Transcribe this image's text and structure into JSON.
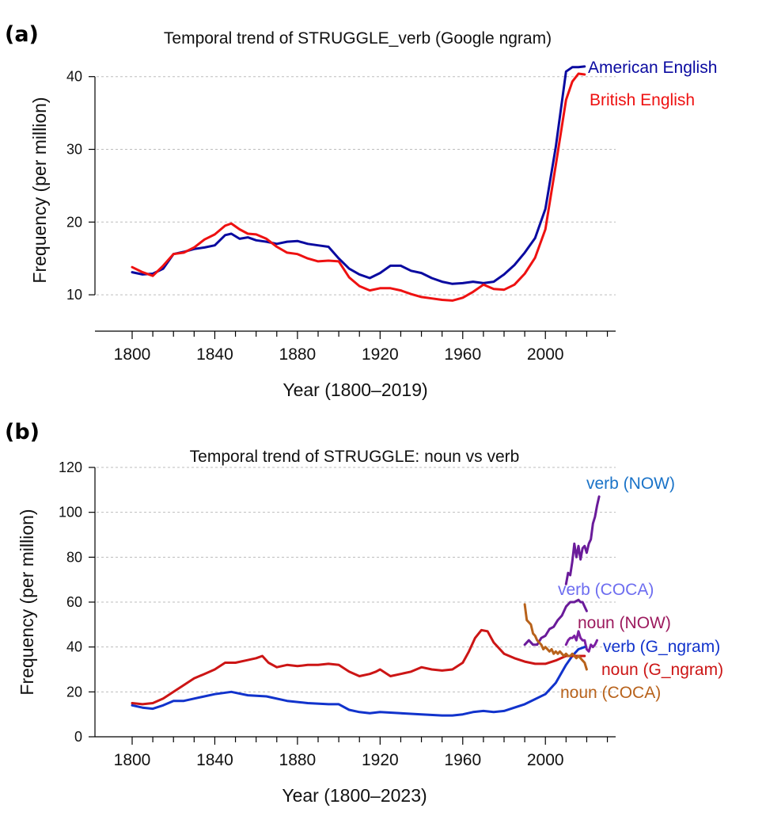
{
  "chart_data": [
    {
      "type": "line",
      "panel_label": "(a)",
      "title": "Temporal trend of STRUGGLE_verb (Google ngram)",
      "xlabel": "Year (1800–2019)",
      "ylabel": "Frequency (per million)",
      "xlim": [
        1782,
        2034
      ],
      "ylim": [
        5,
        44
      ],
      "xticks": [
        1800,
        1840,
        1880,
        1920,
        1960,
        2000
      ],
      "xticks_minor": [
        1800,
        1810,
        1820,
        1830,
        1840,
        1850,
        1860,
        1870,
        1880,
        1890,
        1900,
        1910,
        1920,
        1930,
        1940,
        1950,
        1960,
        1970,
        1980,
        1990,
        2000,
        2010,
        2020,
        2030
      ],
      "yticks": [
        10,
        20,
        30,
        40
      ],
      "grid": true,
      "series": [
        {
          "name": "American English",
          "color": "#0a0aa0",
          "x": [
            1800,
            1805,
            1810,
            1815,
            1820,
            1825,
            1830,
            1835,
            1840,
            1845,
            1848,
            1852,
            1856,
            1860,
            1865,
            1870,
            1875,
            1880,
            1885,
            1890,
            1895,
            1900,
            1905,
            1910,
            1915,
            1920,
            1925,
            1930,
            1935,
            1940,
            1945,
            1950,
            1955,
            1960,
            1965,
            1970,
            1975,
            1980,
            1985,
            1990,
            1995,
            2000,
            2005,
            2010,
            2013,
            2016,
            2019
          ],
          "values": [
            13.1,
            12.8,
            12.9,
            13.6,
            15.6,
            15.9,
            16.3,
            16.5,
            16.8,
            18.2,
            18.4,
            17.7,
            17.9,
            17.5,
            17.3,
            17.0,
            17.3,
            17.4,
            17.0,
            16.8,
            16.6,
            15.0,
            13.6,
            12.8,
            12.3,
            13.0,
            14.0,
            14.0,
            13.3,
            13.0,
            12.3,
            11.8,
            11.5,
            11.6,
            11.8,
            11.6,
            11.8,
            12.8,
            14.1,
            15.8,
            17.8,
            21.8,
            30.3,
            40.7,
            41.3,
            41.3,
            41.4
          ]
        },
        {
          "name": "British English",
          "color": "#ee1111",
          "x": [
            1800,
            1805,
            1810,
            1815,
            1820,
            1825,
            1830,
            1835,
            1840,
            1845,
            1848,
            1852,
            1856,
            1860,
            1865,
            1870,
            1875,
            1880,
            1885,
            1890,
            1895,
            1900,
            1905,
            1910,
            1915,
            1920,
            1925,
            1930,
            1935,
            1940,
            1945,
            1950,
            1955,
            1960,
            1965,
            1970,
            1975,
            1980,
            1985,
            1990,
            1995,
            2000,
            2005,
            2010,
            2013,
            2016,
            2019
          ],
          "values": [
            13.8,
            13.1,
            12.6,
            14.0,
            15.6,
            15.8,
            16.5,
            17.6,
            18.3,
            19.5,
            19.8,
            19.0,
            18.4,
            18.3,
            17.7,
            16.6,
            15.8,
            15.6,
            15.0,
            14.6,
            14.7,
            14.6,
            12.4,
            11.2,
            10.6,
            10.9,
            10.9,
            10.6,
            10.1,
            9.7,
            9.5,
            9.3,
            9.2,
            9.6,
            10.4,
            11.4,
            10.8,
            10.7,
            11.4,
            12.9,
            15.1,
            19.0,
            27.8,
            36.8,
            39.3,
            40.4,
            40.3
          ]
        }
      ]
    },
    {
      "type": "line",
      "panel_label": "(b)",
      "title": "Temporal trend of STRUGGLE: noun vs verb",
      "xlabel": "Year (1800–2023)",
      "ylabel": "Frequency (per million)",
      "xlim": [
        1782,
        2034
      ],
      "ylim": [
        0,
        120
      ],
      "xticks": [
        1800,
        1840,
        1880,
        1920,
        1960,
        2000
      ],
      "xticks_minor": [
        1800,
        1810,
        1820,
        1830,
        1840,
        1850,
        1860,
        1870,
        1880,
        1890,
        1900,
        1910,
        1920,
        1930,
        1940,
        1950,
        1960,
        1970,
        1980,
        1990,
        2000,
        2010,
        2020,
        2030
      ],
      "yticks": [
        0,
        20,
        40,
        60,
        80,
        100,
        120
      ],
      "grid": true,
      "series": [
        {
          "name": "verb (NOW)",
          "color": "#6a1b9a",
          "legend_color": "#1a73c8",
          "x": [
            2010,
            2011,
            2012,
            2013,
            2014,
            2015,
            2016,
            2017,
            2018,
            2019,
            2020,
            2021,
            2022,
            2023,
            2024,
            2025,
            2026
          ],
          "values": [
            68,
            73,
            72,
            78,
            86,
            80,
            85,
            79,
            84,
            85,
            82,
            86,
            88,
            95,
            98,
            103,
            107
          ]
        },
        {
          "name": "verb (COCA)",
          "color": "#6a1b9a",
          "legend_color": "#6d6df0",
          "x": [
            1990,
            1992,
            1994,
            1996,
            1998,
            2000,
            2002,
            2004,
            2006,
            2008,
            2010,
            2012,
            2014,
            2016,
            2017,
            2018,
            2019,
            2020
          ],
          "values": [
            41,
            43,
            41,
            41,
            44,
            45,
            48,
            49,
            52,
            54,
            58,
            60,
            60,
            61,
            60,
            60,
            58,
            56
          ]
        },
        {
          "name": "noun (NOW)",
          "color": "#7b1fa2",
          "legend_color": "#9c1a5e",
          "x": [
            2010,
            2011,
            2012,
            2013,
            2014,
            2015,
            2016,
            2017,
            2018,
            2019,
            2020,
            2021,
            2022,
            2023,
            2024,
            2025
          ],
          "values": [
            41,
            43,
            44,
            44,
            45,
            43,
            47,
            44,
            43,
            43,
            39,
            38,
            41,
            40,
            41,
            43
          ]
        },
        {
          "name": "verb (G_ngram)",
          "color": "#1133cc",
          "legend_color": "#1133cc",
          "x": [
            1800,
            1805,
            1810,
            1815,
            1820,
            1825,
            1830,
            1840,
            1848,
            1856,
            1865,
            1875,
            1885,
            1895,
            1900,
            1905,
            1910,
            1915,
            1920,
            1930,
            1940,
            1950,
            1955,
            1960,
            1965,
            1970,
            1975,
            1980,
            1990,
            2000,
            2005,
            2010,
            2013,
            2016,
            2019
          ],
          "values": [
            14,
            13,
            12.5,
            14,
            16,
            16,
            17,
            19,
            20,
            18.5,
            18,
            16,
            15,
            14.5,
            14.5,
            12,
            11,
            10.5,
            11,
            10.5,
            10,
            9.5,
            9.5,
            10,
            11,
            11.5,
            11,
            11.5,
            14.5,
            19,
            24,
            32,
            36,
            39,
            40
          ]
        },
        {
          "name": "noun (G_ngram)",
          "color": "#cc1515",
          "legend_color": "#cc1515",
          "x": [
            1800,
            1805,
            1810,
            1815,
            1820,
            1825,
            1830,
            1835,
            1840,
            1845,
            1850,
            1855,
            1860,
            1863,
            1866,
            1870,
            1875,
            1880,
            1885,
            1890,
            1895,
            1900,
            1905,
            1910,
            1915,
            1918,
            1920,
            1925,
            1930,
            1935,
            1940,
            1945,
            1950,
            1955,
            1960,
            1963,
            1966,
            1969,
            1972,
            1975,
            1980,
            1985,
            1990,
            1995,
            2000,
            2005,
            2010,
            2015,
            2019
          ],
          "values": [
            15,
            14.5,
            15,
            17,
            20,
            23,
            26,
            28,
            30,
            33,
            33,
            34,
            35,
            36,
            33,
            31,
            32,
            31.5,
            32,
            32,
            32.5,
            32,
            29,
            27,
            28,
            29,
            30,
            27,
            28,
            29,
            31,
            30,
            29.5,
            30,
            33,
            38,
            44,
            47.5,
            47,
            42,
            37,
            35,
            33.5,
            32.5,
            32.5,
            34,
            36,
            36,
            36
          ]
        },
        {
          "name": "noun (COCA)",
          "color": "#b8621b",
          "legend_color": "#b8621b",
          "x": [
            1990,
            1991,
            1992,
            1993,
            1994,
            1995,
            1996,
            1997,
            1998,
            1999,
            2000,
            2001,
            2002,
            2003,
            2004,
            2005,
            2006,
            2007,
            2008,
            2009,
            2010,
            2011,
            2012,
            2013,
            2014,
            2015,
            2016,
            2017,
            2018,
            2019,
            2020
          ],
          "values": [
            59,
            52,
            51,
            50,
            46,
            45,
            43,
            42,
            41,
            39,
            40,
            39,
            38,
            39,
            37,
            38,
            37,
            38,
            37,
            36,
            37,
            36,
            36,
            37,
            36,
            35,
            36,
            35,
            34,
            33,
            30
          ]
        }
      ]
    }
  ]
}
